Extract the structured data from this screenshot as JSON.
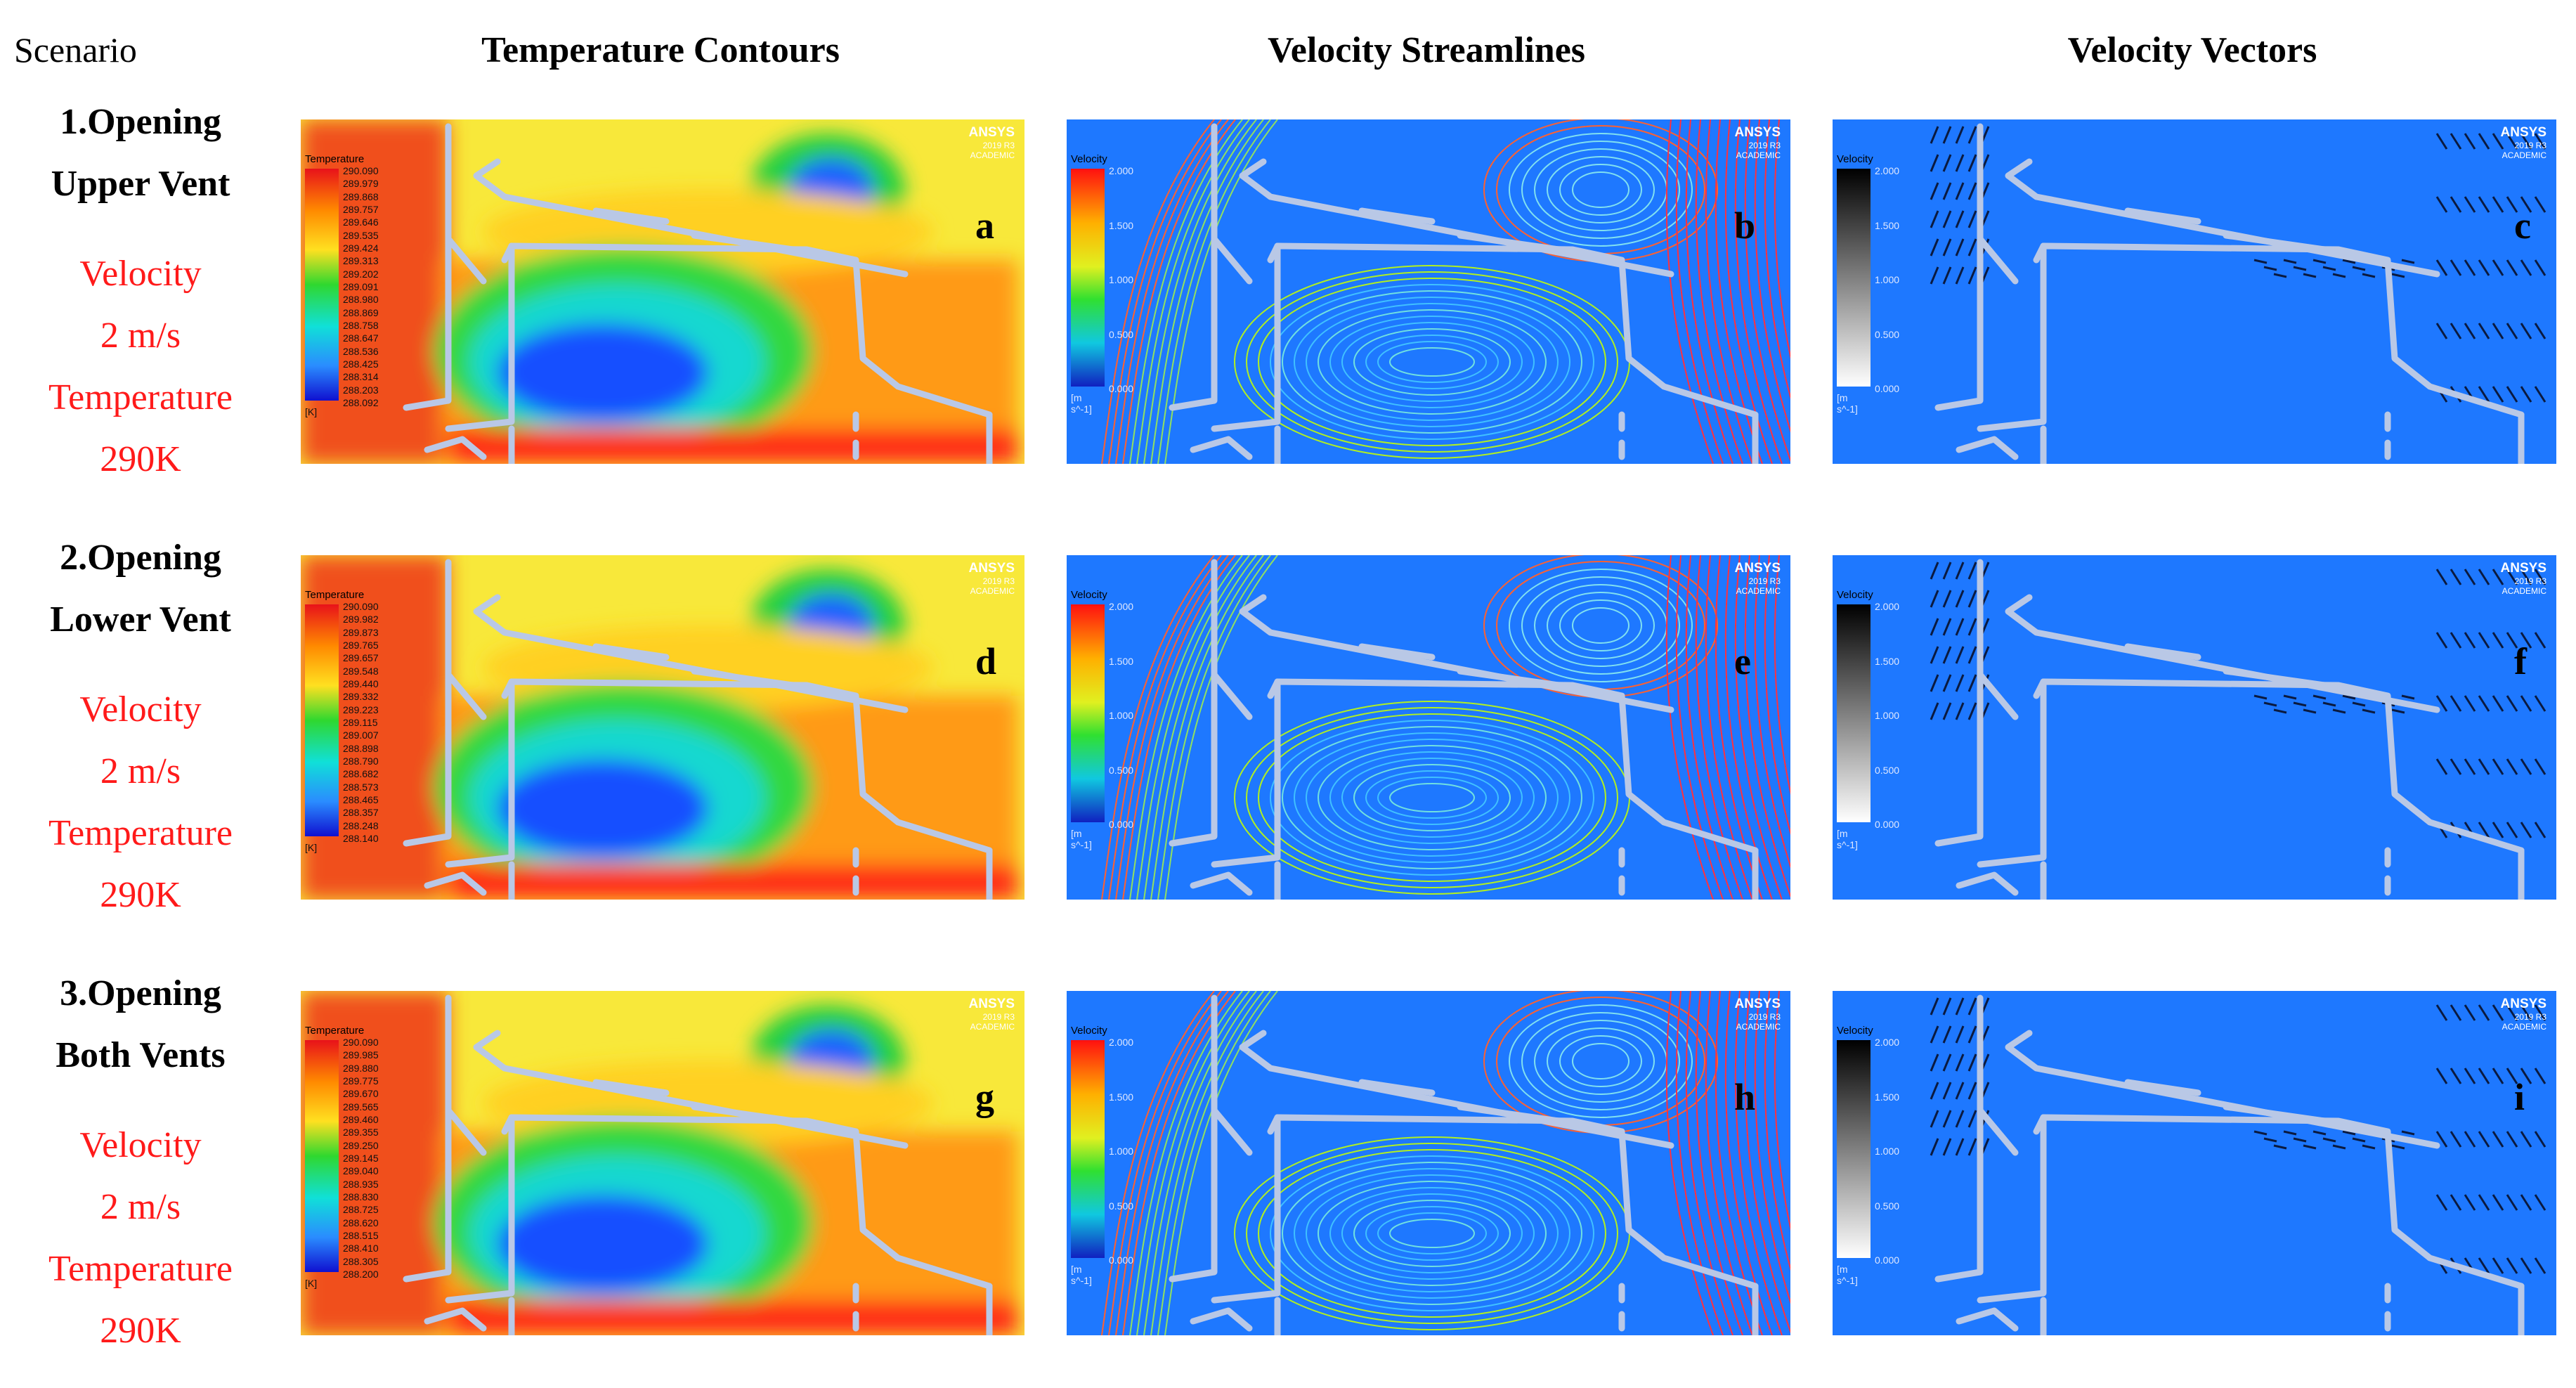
{
  "scenario_label": "Scenario",
  "columns": [
    "Temperature Contours",
    "Velocity Streamlines",
    "Velocity Vectors"
  ],
  "rows": [
    {
      "title": [
        "1.Opening",
        "Upper Vent"
      ],
      "velocity": [
        "Velocity",
        "2 m/s"
      ],
      "temperature": [
        "Temperature",
        "290K"
      ],
      "tags": [
        "a",
        "b",
        "c"
      ],
      "temp_ticks": [
        "290.090",
        "289.979",
        "289.868",
        "289.757",
        "289.646",
        "289.535",
        "289.424",
        "289.313",
        "289.202",
        "289.091",
        "288.980",
        "288.869",
        "288.758",
        "288.647",
        "288.536",
        "288.425",
        "288.314",
        "288.203",
        "288.092"
      ]
    },
    {
      "title": [
        "2.Opening",
        "Lower Vent"
      ],
      "velocity": [
        "Velocity",
        "2 m/s"
      ],
      "temperature": [
        "Temperature",
        "290K"
      ],
      "tags": [
        "d",
        "e",
        "f"
      ],
      "temp_ticks": [
        "290.090",
        "289.982",
        "289.873",
        "289.765",
        "289.657",
        "289.548",
        "289.440",
        "289.332",
        "289.223",
        "289.115",
        "289.007",
        "288.898",
        "288.790",
        "288.682",
        "288.573",
        "288.465",
        "288.357",
        "288.248",
        "288.140"
      ]
    },
    {
      "title": [
        "3.Opening",
        "Both Vents"
      ],
      "velocity": [
        "Velocity",
        "2 m/s"
      ],
      "temperature": [
        "Temperature",
        "290K"
      ],
      "tags": [
        "g",
        "h",
        "i"
      ],
      "temp_ticks": [
        "290.090",
        "289.985",
        "289.880",
        "289.775",
        "289.670",
        "289.565",
        "289.460",
        "289.355",
        "289.250",
        "289.145",
        "289.040",
        "288.935",
        "288.830",
        "288.725",
        "288.620",
        "288.515",
        "288.410",
        "288.305",
        "288.200"
      ]
    }
  ],
  "panel_text": {
    "ansys_brand": "ANSYS",
    "ansys_version": "2019 R3",
    "ansys_edition": "ACADEMIC",
    "temp_legend_title": "Temperature",
    "temp_unit": "[K]",
    "vel_legend_title": "Velocity",
    "vel_unit": "[m s^-1]",
    "vel_ticks": [
      "2.000",
      "1.500",
      "1.000",
      "0.500",
      "0.000"
    ]
  },
  "colors": {
    "background": "#1e78ff",
    "red_text": "#ff1a1a",
    "temperature_bg": "#f8e83a",
    "duct": "#b9c8e6"
  }
}
